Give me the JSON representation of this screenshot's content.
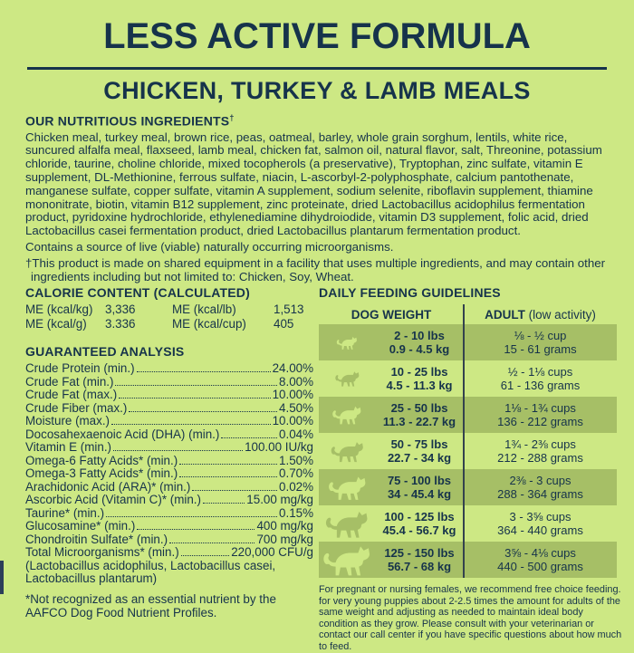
{
  "colors": {
    "background": "#cde884",
    "ink": "#16334b",
    "row_shade": "#a6bf66",
    "icon_on_shade": "#cde884",
    "icon_on_light": "#a6bf66",
    "divider": "#33424e"
  },
  "header": {
    "title": "LESS ACTIVE FORMULA",
    "subtitle": "CHICKEN, TURKEY & LAMB MEALS"
  },
  "ingredients": {
    "heading": "OUR NUTRITIOUS INGREDIENTS",
    "heading_dagger": "†",
    "body": "Chicken meal, turkey meal, brown rice, peas, oatmeal, barley, whole grain sorghum, lentils, white rice, suncured alfalfa meal, flaxseed, lamb meal, chicken fat, salmon oil, natural flavor, salt, Threonine, potassium chloride, taurine, choline chloride, mixed tocopherols (a preservative), Tryptophan, zinc sulfate, vitamin E supplement, DL-Methionine, ferrous sulfate, niacin, L-ascorbyl-2-polyphosphate, calcium pantothenate, manganese sulfate, copper sulfate, vitamin A supplement, sodium selenite, riboflavin supplement, thiamine mononitrate, biotin, vitamin B12 supplement, zinc proteinate, dried Lactobacillus acidophilus fermentation product, pyridoxine hydrochloride, ethylenediamine dihydroiodide, vitamin D3 supplement, folic acid, dried Lactobacillus casei fermentation product, dried Lactobacillus plantarum fermentation product.",
    "contains_note": "Contains a source of live (viable) naturally occurring microorganisms.",
    "shared_equipment_note": "†This product is made on shared equipment in a facility that uses multiple ingredients, and may contain other ingredients including but not limited to: Chicken, Soy, Wheat."
  },
  "calorie_content": {
    "heading": "CALORIE CONTENT (CALCULATED)",
    "entries": [
      {
        "label": "ME (kcal/kg)",
        "value": "3,336"
      },
      {
        "label": "ME (kcal/lb)",
        "value": "1,513"
      },
      {
        "label": "ME (kcal/g)",
        "value": "3.336"
      },
      {
        "label": "ME (kcal/cup)",
        "value": "405"
      }
    ]
  },
  "guaranteed_analysis": {
    "heading": "GUARANTEED ANALYSIS",
    "rows": [
      {
        "label": "Crude Protein (min.)",
        "value": "24.00%"
      },
      {
        "label": "Crude Fat (min.)",
        "value": "8.00%"
      },
      {
        "label": "Crude Fat (max.)",
        "value": "10.00%"
      },
      {
        "label": "Crude Fiber (max.)",
        "value": "4.50%"
      },
      {
        "label": "Moisture (max.)",
        "value": "10.00%"
      },
      {
        "label": "Docosahexaenoic Acid (DHA) (min.)",
        "value": "0.04%"
      },
      {
        "label": "Vitamin E (min.)",
        "value": "100.00 IU/kg"
      },
      {
        "label": "Omega-6 Fatty Acids* (min.)",
        "value": "1.50%"
      },
      {
        "label": "Omega-3 Fatty Acids* (min.)",
        "value": "0.70%"
      },
      {
        "label": "Arachidonic Acid (ARA)* (min.)",
        "value": "0.02%"
      },
      {
        "label": "Ascorbic Acid (Vitamin C)* (min.)",
        "value": "15.00 mg/kg"
      },
      {
        "label": "Taurine* (min.)",
        "value": "0.15%"
      },
      {
        "label": "Glucosamine* (min.)",
        "value": "400 mg/kg"
      },
      {
        "label": "Chondroitin Sulfate* (min.)",
        "value": "700 mg/kg"
      },
      {
        "label": "Total Microorganisms* (min.)",
        "value": "220,000 CFU/g"
      }
    ],
    "extra_lines": [
      "(Lactobacillus acidophilus, Lactobacillus casei,",
      "Lactobacillus plantarum)"
    ],
    "footnote": "*Not recognized as an essential nutrient by the AAFCO Dog Food Nutrient Profiles."
  },
  "feeding_guidelines": {
    "heading": "DAILY FEEDING GUIDELINES",
    "col1_header": "DOG WEIGHT",
    "col2_header_bold": "ADULT",
    "col2_header_normal": " (low activity)",
    "rows": [
      {
        "lbs": "2 - 10 lbs",
        "kg": "0.9 - 4.5 kg",
        "cups": "⅛ - ½ cup",
        "grams": "15 - 61 grams"
      },
      {
        "lbs": "10 - 25 lbs",
        "kg": "4.5 - 11.3 kg",
        "cups": "½ - 1⅛ cups",
        "grams": "61 - 136 grams"
      },
      {
        "lbs": "25 - 50 lbs",
        "kg": "11.3 - 22.7 kg",
        "cups": "1⅛ - 1¾ cups",
        "grams": "136 - 212 grams"
      },
      {
        "lbs": "50 - 75 lbs",
        "kg": "22.7 - 34 kg",
        "cups": "1¾ - 2⅜ cups",
        "grams": "212 - 288 grams"
      },
      {
        "lbs": "75 - 100 lbs",
        "kg": "34 - 45.4 kg",
        "cups": "2⅜ - 3 cups",
        "grams": "288 - 364 grams"
      },
      {
        "lbs": "100 - 125 lbs",
        "kg": "45.4 - 56.7 kg",
        "cups": "3 - 3⅝ cups",
        "grams": "364 - 440 grams"
      },
      {
        "lbs": "125 - 150 lbs",
        "kg": "56.7 - 68 kg",
        "cups": "3⅝ - 4⅛ cups",
        "grams": "440 - 500 grams"
      }
    ],
    "footer_note": "For pregnant or nursing females, we recommend free choice feeding. for very young puppies about 2-2.5 times the amount for adults of the same weight and adjusting as needed to maintain ideal body condition as they grow. Please consult with your veterinarian or contact our call center if you have specific questions about how much to feed."
  }
}
